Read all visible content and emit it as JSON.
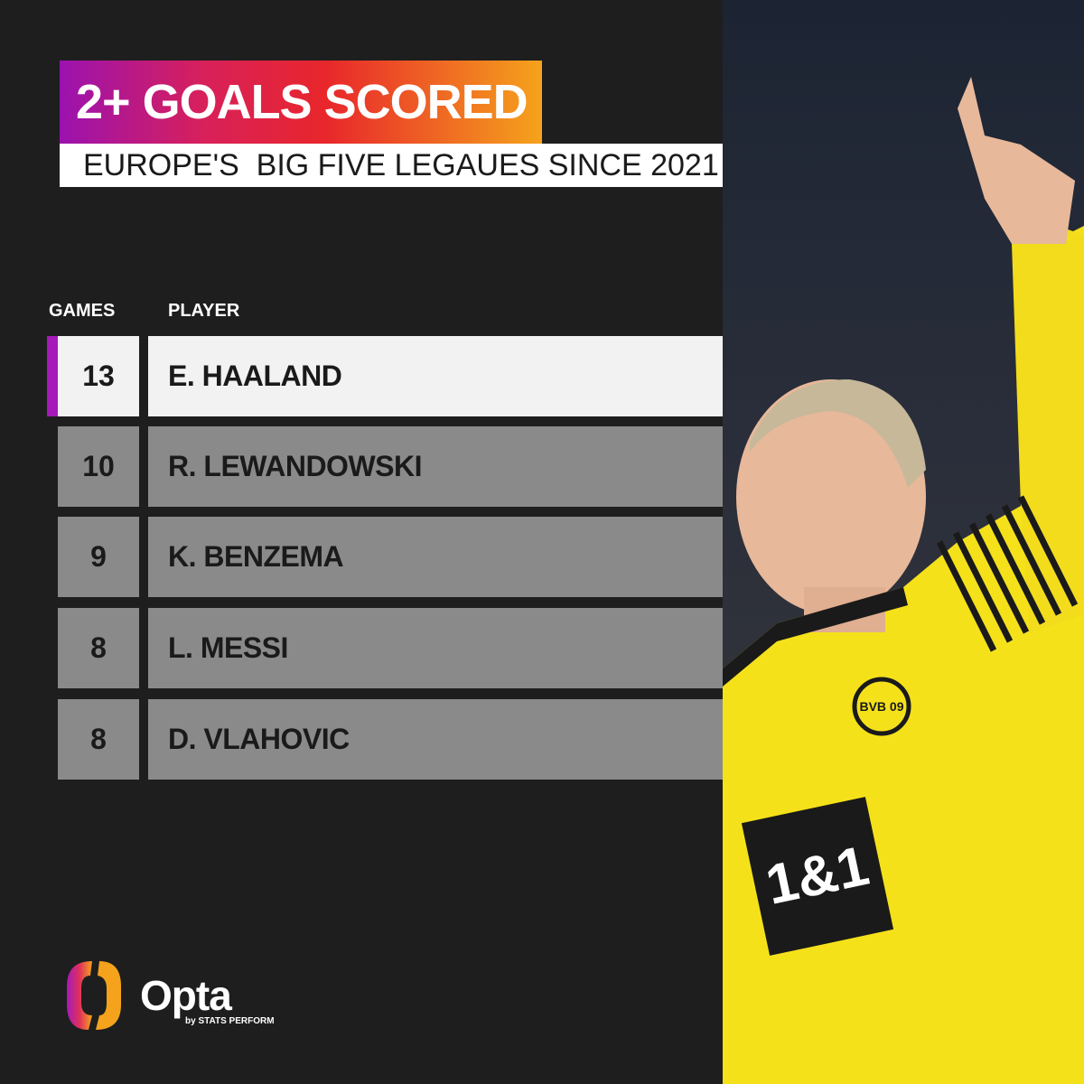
{
  "header": {
    "title": "2+ GOALS SCORED",
    "subtitle": "EUROPE'S  BIG FIVE LEGAUES SINCE 2021"
  },
  "table": {
    "columns": [
      "GAMES",
      "PLAYER"
    ],
    "rows": [
      {
        "games": "13",
        "player": "E. HAALAND",
        "highlighted": true
      },
      {
        "games": "10",
        "player": "R. LEWANDOWSKI",
        "highlighted": false
      },
      {
        "games": "9",
        "player": "K. BENZEMA",
        "highlighted": false
      },
      {
        "games": "8",
        "player": "L. MESSI",
        "highlighted": false
      },
      {
        "games": "8",
        "player": "D. VLAHOVIC",
        "highlighted": false
      }
    ]
  },
  "branding": {
    "logo_text": "Opta",
    "logo_sub": "by STATS PERFORM",
    "shirt_sponsor": "1&1",
    "club_badge": "BVB 09"
  },
  "colors": {
    "accent": "#a51ab8",
    "gradient_start": "#9b12b0",
    "gradient_end": "#f5a31c",
    "row_bg": "#8a8a8a",
    "highlight_bg": "#f2f2f2",
    "shirt": "#f5e11a"
  }
}
